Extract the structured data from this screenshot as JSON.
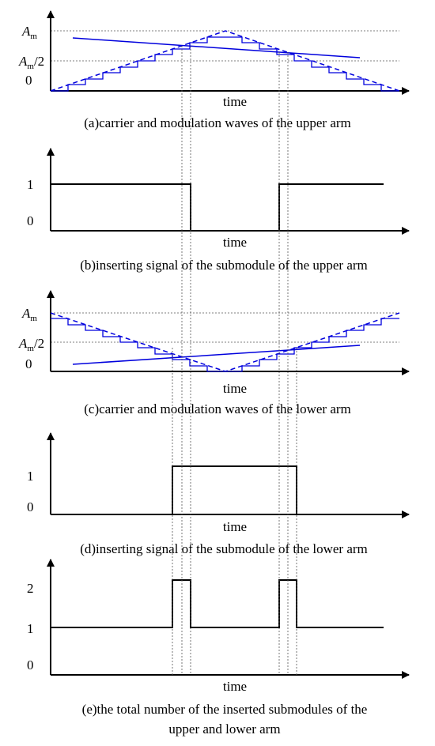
{
  "colors": {
    "axis": "#000000",
    "wave": "#0000dd",
    "guide": "#555555",
    "background": "#ffffff"
  },
  "common": {
    "x_label": "time",
    "label_zero": "0",
    "label_one": "1",
    "label_two": "2",
    "label_am": "A",
    "label_am_sub": "m",
    "label_am_half": "/2"
  },
  "captions": {
    "a": "(a)carrier and modulation waves of the upper arm",
    "b": "(b)inserting signal of the submodule of the upper arm",
    "c": "(c)carrier and modulation waves of the lower arm",
    "d": "(d)inserting signal of the submodule of the lower arm",
    "e_line1": "(e)the total number of the inserted submodules of the",
    "e_line2": "upper and lower arm"
  }
}
